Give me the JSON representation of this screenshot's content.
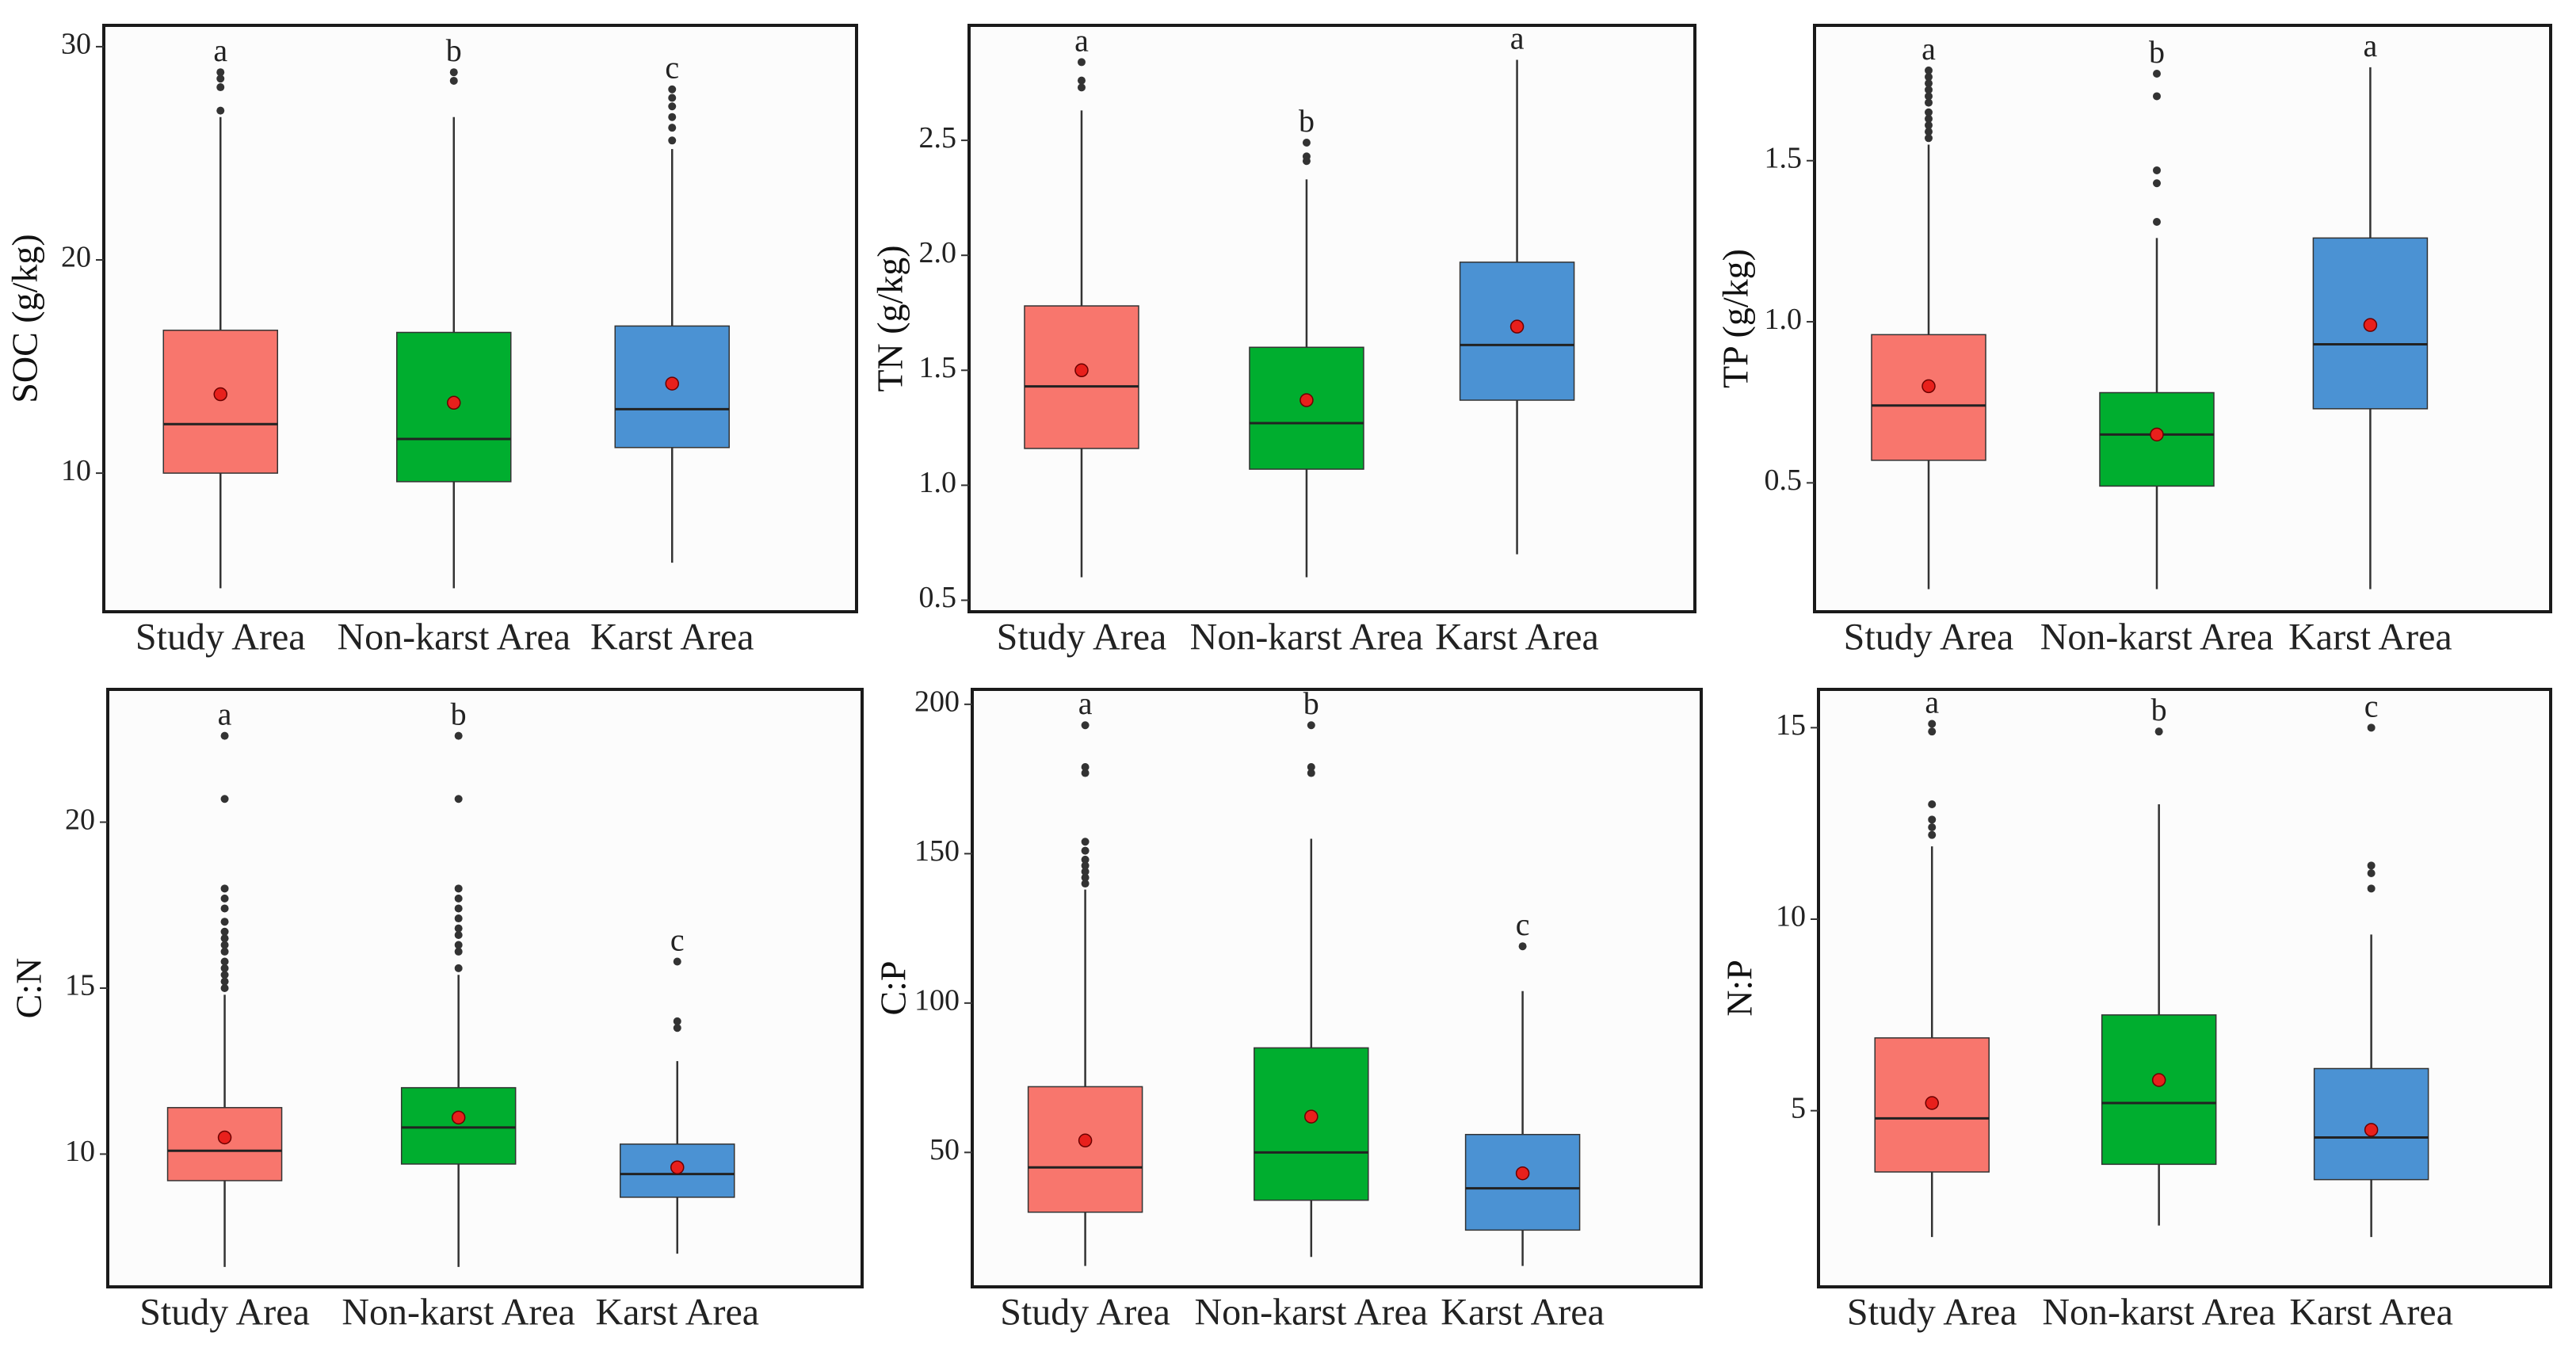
{
  "chart_data": [
    {
      "type": "box",
      "ylabel": "SOC (g/kg)",
      "ylim": [
        3.5,
        31
      ],
      "yticks": [
        10,
        20,
        30
      ],
      "categories": [
        "Study Area",
        "Non-karst Area",
        "Karst Area"
      ],
      "colors": [
        "#f8766d",
        "#00ae2f",
        "#4b92d3"
      ],
      "boxes": [
        {
          "min": 4.6,
          "q1": 10.0,
          "median": 12.3,
          "q3": 16.7,
          "max": 26.7,
          "mean": 13.7,
          "outliers": [
            27.0,
            28.1,
            28.5,
            28.8
          ],
          "letter": "a"
        },
        {
          "min": 4.6,
          "q1": 9.6,
          "median": 11.6,
          "q3": 16.6,
          "max": 26.7,
          "mean": 13.3,
          "outliers": [
            28.4,
            28.8
          ],
          "letter": "b"
        },
        {
          "min": 5.8,
          "q1": 11.2,
          "median": 13.0,
          "q3": 16.9,
          "max": 25.2,
          "mean": 14.2,
          "outliers": [
            25.6,
            26.2,
            26.7,
            27.2,
            27.6,
            28.0
          ],
          "letter": "c"
        }
      ]
    },
    {
      "type": "box",
      "ylabel": "TN (g/kg)",
      "ylim": [
        0.45,
        3.0
      ],
      "yticks": [
        0.5,
        1.0,
        1.5,
        2.0,
        2.5
      ],
      "categories": [
        "Study Area",
        "Non-karst Area",
        "Karst Area"
      ],
      "colors": [
        "#f8766d",
        "#00ae2f",
        "#4b92d3"
      ],
      "boxes": [
        {
          "min": 0.6,
          "q1": 1.16,
          "median": 1.43,
          "q3": 1.78,
          "max": 2.63,
          "mean": 1.5,
          "outliers": [
            2.73,
            2.76,
            2.84
          ],
          "letter": "a"
        },
        {
          "min": 0.6,
          "q1": 1.07,
          "median": 1.27,
          "q3": 1.6,
          "max": 2.33,
          "mean": 1.37,
          "outliers": [
            2.41,
            2.43,
            2.49
          ],
          "letter": "b"
        },
        {
          "min": 0.7,
          "q1": 1.37,
          "median": 1.61,
          "q3": 1.97,
          "max": 2.85,
          "mean": 1.69,
          "outliers": [],
          "letter": "a"
        }
      ]
    },
    {
      "type": "box",
      "ylabel": "TP (g/kg)",
      "ylim": [
        0.1,
        1.92
      ],
      "yticks": [
        0.5,
        1.0,
        1.5
      ],
      "categories": [
        "Study Area",
        "Non-karst Area",
        "Karst Area"
      ],
      "colors": [
        "#f8766d",
        "#00ae2f",
        "#4b92d3"
      ],
      "boxes": [
        {
          "min": 0.17,
          "q1": 0.57,
          "median": 0.74,
          "q3": 0.96,
          "max": 1.55,
          "mean": 0.8,
          "outliers": [
            1.57,
            1.59,
            1.61,
            1.63,
            1.65,
            1.68,
            1.7,
            1.72,
            1.74,
            1.76,
            1.78
          ],
          "letter": "a"
        },
        {
          "min": 0.17,
          "q1": 0.49,
          "median": 0.65,
          "q3": 0.78,
          "max": 1.26,
          "mean": 0.65,
          "outliers": [
            1.31,
            1.43,
            1.47,
            1.7,
            1.77
          ],
          "letter": "b"
        },
        {
          "min": 0.17,
          "q1": 0.73,
          "median": 0.93,
          "q3": 1.26,
          "max": 1.79,
          "mean": 0.99,
          "outliers": [],
          "letter": "a"
        }
      ]
    },
    {
      "type": "box",
      "ylabel": "C:N",
      "ylim": [
        6.0,
        24.0
      ],
      "yticks": [
        10,
        15,
        20
      ],
      "categories": [
        "Study Area",
        "Non-karst Area",
        "Karst Area"
      ],
      "colors": [
        "#f8766d",
        "#00ae2f",
        "#4b92d3"
      ],
      "boxes": [
        {
          "min": 6.6,
          "q1": 9.2,
          "median": 10.1,
          "q3": 11.4,
          "max": 14.8,
          "mean": 10.5,
          "outliers": [
            15.0,
            15.2,
            15.4,
            15.6,
            15.8,
            16.1,
            16.3,
            16.5,
            16.7,
            17.0,
            17.4,
            17.7,
            18.0,
            20.7,
            22.6
          ],
          "letter": "a"
        },
        {
          "min": 6.6,
          "q1": 9.7,
          "median": 10.8,
          "q3": 12.0,
          "max": 15.4,
          "mean": 11.1,
          "outliers": [
            15.6,
            16.1,
            16.3,
            16.6,
            16.8,
            17.1,
            17.4,
            17.7,
            18.0,
            20.7,
            22.6
          ],
          "letter": "b"
        },
        {
          "min": 7.0,
          "q1": 8.7,
          "median": 9.4,
          "q3": 10.3,
          "max": 12.8,
          "mean": 9.6,
          "outliers": [
            13.8,
            14.0,
            15.8
          ],
          "letter": "c"
        }
      ]
    },
    {
      "type": "box",
      "ylabel": "C:P",
      "ylim": [
        5,
        205
      ],
      "yticks": [
        50,
        100,
        150,
        200
      ],
      "categories": [
        "Study Area",
        "Non-karst Area",
        "Karst Area"
      ],
      "colors": [
        "#f8766d",
        "#00ae2f",
        "#4b92d3"
      ],
      "boxes": [
        {
          "min": 12,
          "q1": 30,
          "median": 45,
          "q3": 72,
          "max": 138,
          "mean": 54,
          "outliers": [
            140,
            142,
            144,
            146,
            148,
            151,
            154,
            177,
            179,
            193
          ],
          "letter": "a"
        },
        {
          "min": 15,
          "q1": 34,
          "median": 50,
          "q3": 85,
          "max": 155,
          "mean": 62,
          "outliers": [
            177,
            179,
            193
          ],
          "letter": "b"
        },
        {
          "min": 12,
          "q1": 24,
          "median": 38,
          "q3": 56,
          "max": 104,
          "mean": 43,
          "outliers": [
            119
          ],
          "letter": "c"
        }
      ]
    },
    {
      "type": "box",
      "ylabel": "N:P",
      "ylim": [
        0.4,
        16.0
      ],
      "yticks": [
        5,
        10,
        15
      ],
      "categories": [
        "Study Area",
        "Non-karst Area",
        "Karst Area"
      ],
      "colors": [
        "#f8766d",
        "#00ae2f",
        "#4b92d3"
      ],
      "boxes": [
        {
          "min": 1.7,
          "q1": 3.4,
          "median": 4.8,
          "q3": 6.9,
          "max": 11.9,
          "mean": 5.2,
          "outliers": [
            12.2,
            12.4,
            12.6,
            13.0,
            14.9,
            15.1
          ],
          "letter": "a"
        },
        {
          "min": 2.0,
          "q1": 3.6,
          "median": 5.2,
          "q3": 7.5,
          "max": 13.0,
          "mean": 5.8,
          "outliers": [
            14.9
          ],
          "letter": "b"
        },
        {
          "min": 1.7,
          "q1": 3.2,
          "median": 4.3,
          "q3": 6.1,
          "max": 9.6,
          "mean": 4.5,
          "outliers": [
            10.8,
            11.2,
            11.4,
            15.0
          ],
          "letter": "c"
        }
      ]
    }
  ]
}
